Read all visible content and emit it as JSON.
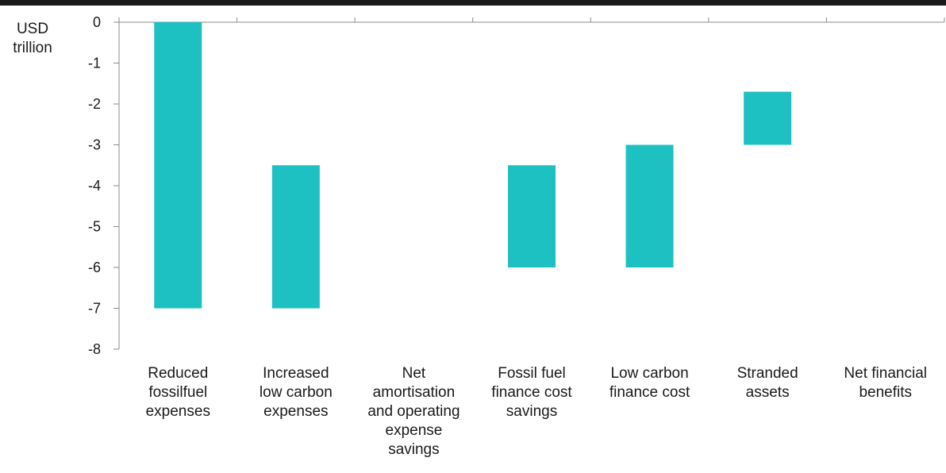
{
  "chart_data": {
    "type": "bar",
    "subtype": "floating-waterfall",
    "title": "",
    "ylabel": [
      "USD",
      "trillion"
    ],
    "xlabel": "",
    "ylim": [
      -8,
      0
    ],
    "yticks": [
      0,
      -1,
      -2,
      -3,
      -4,
      -5,
      -6,
      -7,
      -8
    ],
    "grid": false,
    "legend": "none",
    "bar_color": "#1ec1c1",
    "categories": [
      {
        "label": [
          "Reduced",
          "fossilfuel",
          "expenses"
        ],
        "start": 0,
        "end": -7
      },
      {
        "label": [
          "Increased",
          "low carbon",
          "expenses"
        ],
        "start": -3.5,
        "end": -7
      },
      {
        "label": [
          "Net",
          "amortisation",
          "and operating",
          "expense",
          "savings"
        ],
        "start": null,
        "end": null
      },
      {
        "label": [
          "Fossil fuel",
          "finance cost",
          "savings"
        ],
        "start": -3.5,
        "end": -6
      },
      {
        "label": [
          "Low carbon",
          "finance cost"
        ],
        "start": -3,
        "end": -6
      },
      {
        "label": [
          "Stranded",
          "assets"
        ],
        "start": -1.7,
        "end": -3
      },
      {
        "label": [
          "Net financial",
          "benefits"
        ],
        "start": null,
        "end": null
      }
    ]
  }
}
